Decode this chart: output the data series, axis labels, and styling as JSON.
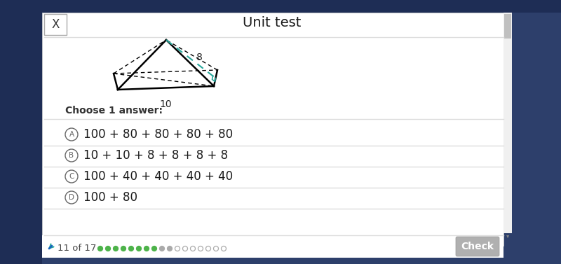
{
  "title": "Unit test",
  "modal_bg": "#ffffff",
  "outer_bg": "#2d3f6b",
  "left_panel_bg": "#1e2d55",
  "close_btn": "X",
  "choose_label": "Choose 1 answer:",
  "options": [
    {
      "letter": "A",
      "text": "100 + 80 + 80 + 80 + 80"
    },
    {
      "letter": "B",
      "text": "10 + 10 + 8 + 8 + 8 + 8"
    },
    {
      "letter": "C",
      "text": "100 + 40 + 40 + 40 + 40"
    },
    {
      "letter": "D",
      "text": "100 + 80"
    }
  ],
  "progress_text": "11 of 17",
  "check_btn_text": "Check",
  "check_btn_color": "#b0b0b0",
  "pyramid_label_slant": "8",
  "pyramid_label_base": "10",
  "title_fontsize": 14,
  "option_fontsize": 12,
  "choose_fontsize": 10,
  "scrollbar_color": "#c0c0c0",
  "separator_color": "#dddddd",
  "circle_color": "#666666",
  "teal_color": "#26a69a",
  "progress_dots": [
    "#4db34a",
    "#4db34a",
    "#4db34a",
    "#4db34a",
    "#4db34a",
    "#4db34a",
    "#4db34a",
    "#4db34a",
    "#aaaaaa",
    "#aaaaaa",
    "#e8e8e8",
    "#e8e8e8",
    "#e8e8e8",
    "#e8e8e8",
    "#e8e8e8",
    "#e8e8e8",
    "#e8e8e8"
  ],
  "progress_dot_outline": [
    "#4db34a",
    "#4db34a",
    "#4db34a",
    "#4db34a",
    "#4db34a",
    "#4db34a",
    "#4db34a",
    "#4db34a",
    "#aaaaaa",
    "#aaaaaa",
    "#aaaaaa",
    "#aaaaaa",
    "#aaaaaa",
    "#aaaaaa",
    "#aaaaaa",
    "#aaaaaa",
    "#aaaaaa"
  ]
}
